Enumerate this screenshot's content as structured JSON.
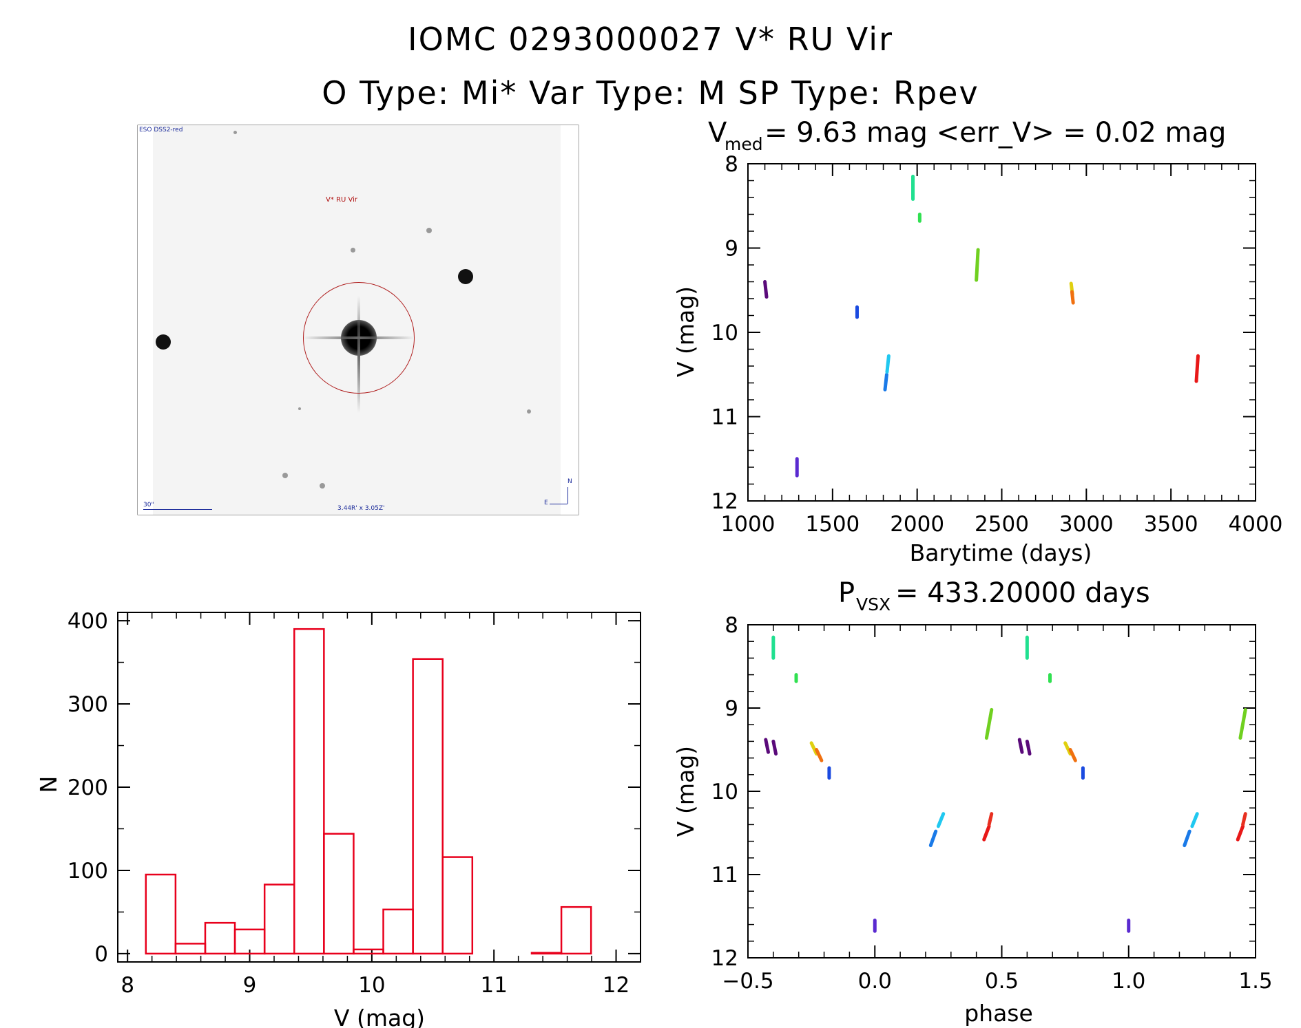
{
  "header": {
    "title_line1": "IOMC 0293000027    V* RU Vir",
    "title_line2": "O Type: Mi*  Var Type: M  SP Type: Rpev"
  },
  "sky_image": {
    "survey_label": "ESO DSS2-red",
    "target_label": "V* RU Vir",
    "scale_label": "30\"",
    "fov_label": "3.44R' x 3.05Z'",
    "north_label": "N",
    "east_label": "E"
  },
  "colors": {
    "histogram": "#e8001c",
    "axis": "#000000"
  },
  "chart_data": [
    {
      "id": "light_curve",
      "type": "scatter",
      "title_prefix": "V",
      "title_sub": "med",
      "title_rest": " = 9.63 mag <err_V> = 0.02 mag",
      "xlabel": "Barytime (days)",
      "ylabel": "V (mag)",
      "xlim": [
        1000,
        4000
      ],
      "ylim": [
        8,
        12
      ],
      "y_inverted": true,
      "xticks": [
        1000,
        1500,
        2000,
        2500,
        3000,
        3500,
        4000
      ],
      "yticks": [
        8,
        9,
        10,
        11,
        12
      ],
      "clusters": [
        {
          "x1": 1100,
          "y1": 9.4,
          "x2": 1110,
          "y2": 9.58,
          "color": "#5a0a7a"
        },
        {
          "x1": 1290,
          "y1": 11.5,
          "x2": 1290,
          "y2": 11.7,
          "color": "#5a2ad0"
        },
        {
          "x1": 1645,
          "y1": 9.7,
          "x2": 1645,
          "y2": 9.82,
          "color": "#1a4ae0"
        },
        {
          "x1": 1810,
          "y1": 10.68,
          "x2": 1820,
          "y2": 10.5,
          "color": "#1a7ae8"
        },
        {
          "x1": 1822,
          "y1": 10.47,
          "x2": 1832,
          "y2": 10.28,
          "color": "#20c8f0"
        },
        {
          "x1": 1975,
          "y1": 8.15,
          "x2": 1975,
          "y2": 8.42,
          "color": "#20e090"
        },
        {
          "x1": 2015,
          "y1": 8.6,
          "x2": 2015,
          "y2": 8.68,
          "color": "#30e050"
        },
        {
          "x1": 2350,
          "y1": 9.38,
          "x2": 2360,
          "y2": 9.02,
          "color": "#70d020"
        },
        {
          "x1": 2910,
          "y1": 9.42,
          "x2": 2918,
          "y2": 9.55,
          "color": "#e0d010"
        },
        {
          "x1": 2915,
          "y1": 9.52,
          "x2": 2922,
          "y2": 9.65,
          "color": "#f07010"
        },
        {
          "x1": 3650,
          "y1": 10.58,
          "x2": 3660,
          "y2": 10.28,
          "color": "#e81818"
        }
      ]
    },
    {
      "id": "histogram",
      "type": "bar",
      "xlabel": "V (mag)",
      "ylabel": "N",
      "xlim": [
        7.92,
        12.2
      ],
      "ylim": [
        -10,
        410
      ],
      "xticks": [
        8,
        9,
        10,
        11,
        12
      ],
      "yticks": [
        0,
        100,
        200,
        300,
        400
      ],
      "bin_width": 0.243,
      "bin_starts": [
        8.15,
        8.393,
        8.636,
        8.879,
        9.122,
        9.365,
        9.608,
        9.851,
        10.094,
        10.337,
        10.58,
        10.823,
        11.066,
        11.309,
        11.552
      ],
      "values": [
        95,
        12,
        37,
        29,
        83,
        390,
        144,
        5,
        53,
        354,
        116,
        0,
        0,
        1,
        56
      ]
    },
    {
      "id": "phase_curve",
      "type": "scatter",
      "title_prefix": "P",
      "title_sub": "VSX",
      "title_rest": " = 433.20000 days",
      "xlabel": "phase",
      "ylabel": "V (mag)",
      "xlim": [
        -0.5,
        1.5
      ],
      "ylim": [
        8,
        12
      ],
      "y_inverted": true,
      "xticks": [
        -0.5,
        0.0,
        0.5,
        1.0,
        1.5
      ],
      "xtick_labels": [
        "−0.5",
        "0.0",
        "0.5",
        "1.0",
        "1.5"
      ],
      "yticks": [
        8,
        9,
        10,
        11,
        12
      ],
      "clusters": [
        {
          "x1": 0.0,
          "y1": 11.55,
          "x2": 0.0,
          "y2": 11.68,
          "color": "#5a2ad0"
        },
        {
          "x1": 0.22,
          "y1": 10.65,
          "x2": 0.24,
          "y2": 10.48,
          "color": "#1a7ae8"
        },
        {
          "x1": 0.25,
          "y1": 10.42,
          "x2": 0.27,
          "y2": 10.27,
          "color": "#20c8f0"
        },
        {
          "x1": 0.43,
          "y1": 10.58,
          "x2": 0.45,
          "y2": 10.42,
          "color": "#e81818"
        },
        {
          "x1": 0.45,
          "y1": 10.4,
          "x2": 0.46,
          "y2": 10.27,
          "color": "#e83020"
        },
        {
          "x1": 0.44,
          "y1": 9.36,
          "x2": 0.46,
          "y2": 9.02,
          "color": "#70d020"
        },
        {
          "x1": 0.57,
          "y1": 9.38,
          "x2": 0.58,
          "y2": 9.53,
          "color": "#5a0a7a"
        },
        {
          "x1": 0.6,
          "y1": 9.4,
          "x2": 0.61,
          "y2": 9.55,
          "color": "#5a0a7a"
        },
        {
          "x1": 0.6,
          "y1": 8.15,
          "x2": 0.6,
          "y2": 8.4,
          "color": "#20e090"
        },
        {
          "x1": 0.69,
          "y1": 8.6,
          "x2": 0.69,
          "y2": 8.68,
          "color": "#30e050"
        },
        {
          "x1": 0.75,
          "y1": 9.42,
          "x2": 0.77,
          "y2": 9.55,
          "color": "#e0d010"
        },
        {
          "x1": 0.77,
          "y1": 9.5,
          "x2": 0.79,
          "y2": 9.63,
          "color": "#f07010"
        },
        {
          "x1": 0.82,
          "y1": 9.72,
          "x2": 0.82,
          "y2": 9.84,
          "color": "#1a4ae0"
        },
        {
          "x1": -0.43,
          "y1": 9.38,
          "x2": -0.42,
          "y2": 9.53,
          "color": "#5a0a7a"
        },
        {
          "x1": -0.4,
          "y1": 9.4,
          "x2": -0.39,
          "y2": 9.55,
          "color": "#5a0a7a"
        },
        {
          "x1": -0.4,
          "y1": 8.15,
          "x2": -0.4,
          "y2": 8.4,
          "color": "#20e090"
        },
        {
          "x1": -0.31,
          "y1": 8.6,
          "x2": -0.31,
          "y2": 8.68,
          "color": "#30e050"
        },
        {
          "x1": -0.25,
          "y1": 9.42,
          "x2": -0.23,
          "y2": 9.55,
          "color": "#e0d010"
        },
        {
          "x1": -0.23,
          "y1": 9.5,
          "x2": -0.21,
          "y2": 9.63,
          "color": "#f07010"
        },
        {
          "x1": -0.18,
          "y1": 9.72,
          "x2": -0.18,
          "y2": 9.84,
          "color": "#1a4ae0"
        },
        {
          "x1": 1.0,
          "y1": 11.55,
          "x2": 1.0,
          "y2": 11.68,
          "color": "#5a2ad0"
        },
        {
          "x1": 1.22,
          "y1": 10.65,
          "x2": 1.24,
          "y2": 10.48,
          "color": "#1a7ae8"
        },
        {
          "x1": 1.25,
          "y1": 10.42,
          "x2": 1.27,
          "y2": 10.27,
          "color": "#20c8f0"
        },
        {
          "x1": 1.43,
          "y1": 10.58,
          "x2": 1.45,
          "y2": 10.42,
          "color": "#e81818"
        },
        {
          "x1": 1.45,
          "y1": 10.4,
          "x2": 1.46,
          "y2": 10.27,
          "color": "#e83020"
        },
        {
          "x1": 1.44,
          "y1": 9.36,
          "x2": 1.46,
          "y2": 9.02,
          "color": "#70d020"
        }
      ]
    }
  ]
}
